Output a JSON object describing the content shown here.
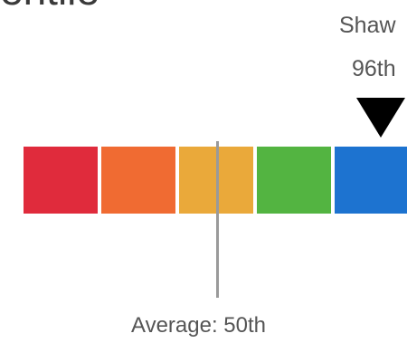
{
  "title_fragment": "entile",
  "marker": {
    "name": "Shaw",
    "value": "96th"
  },
  "average": {
    "label": "Average: 50th"
  },
  "segments": [
    {
      "name": "red",
      "color": "#e02b3c"
    },
    {
      "name": "orange",
      "color": "#f06b32"
    },
    {
      "name": "yellow",
      "color": "#eaa93a"
    },
    {
      "name": "green",
      "color": "#53b441"
    },
    {
      "name": "blue",
      "color": "#1d73d0"
    }
  ],
  "colors": {
    "marker_arrow": "#000000",
    "average_line": "#9a9a9a"
  }
}
